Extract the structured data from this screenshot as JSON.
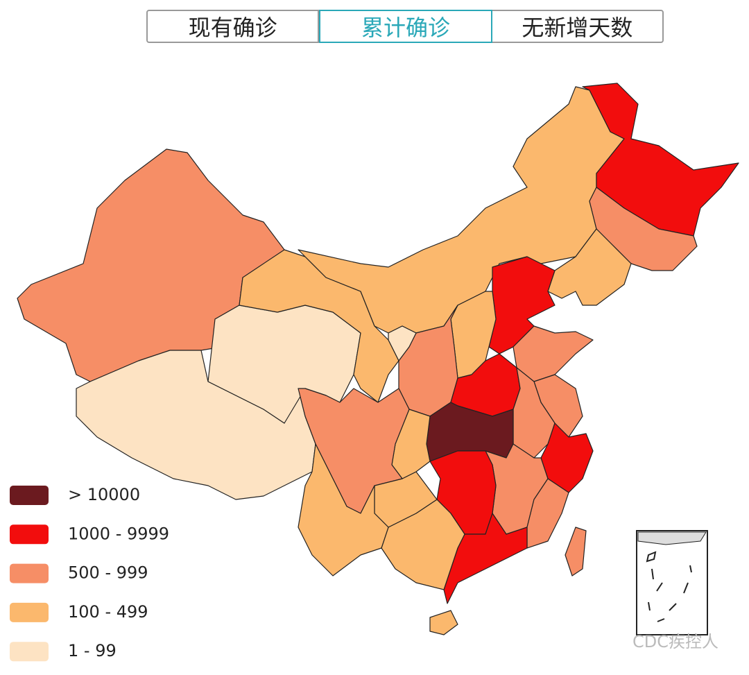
{
  "tabs": {
    "items": [
      "现有确诊",
      "累计确诊",
      "无新增天数"
    ],
    "active": 1,
    "active_color": "#2aa8b8"
  },
  "legend": {
    "items": [
      {
        "label": "> 10000",
        "color": "#6b1a1f"
      },
      {
        "label": "1000 - 9999",
        "color": "#f20d0d"
      },
      {
        "label": "500 - 999",
        "color": "#f68e66"
      },
      {
        "label": "100 - 499",
        "color": "#fbb86d"
      },
      {
        "label": "1 - 99",
        "color": "#fde3c3"
      }
    ]
  },
  "watermark": "CDC疾控人"
}
